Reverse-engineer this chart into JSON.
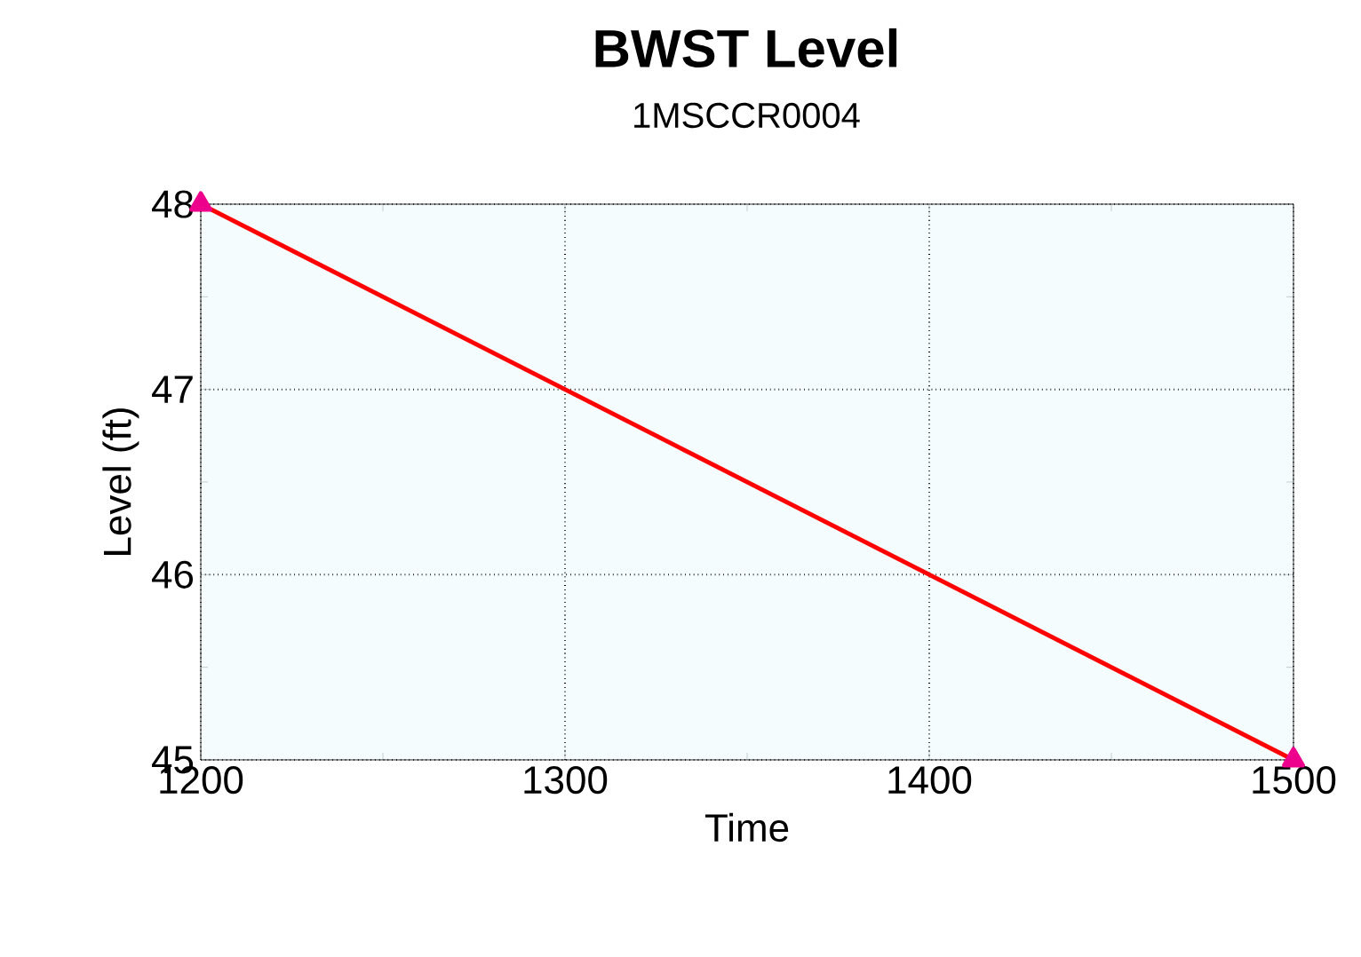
{
  "chart_data": {
    "type": "line",
    "title": "BWST Level",
    "subtitle": "1MSCCR0004",
    "xlabel": "Time",
    "ylabel": "Level (ft)",
    "x": [
      1200,
      1500
    ],
    "series": [
      {
        "color": "#ff0000",
        "values": [
          48,
          45
        ]
      }
    ],
    "xlim": [
      1200,
      1500
    ],
    "xticks": [
      1200,
      1300,
      1400,
      1500
    ],
    "ylim": [
      45,
      48
    ],
    "yticks": [
      45,
      46,
      47,
      48
    ],
    "grid": true,
    "marker": "triangle",
    "line_style": "solid"
  }
}
